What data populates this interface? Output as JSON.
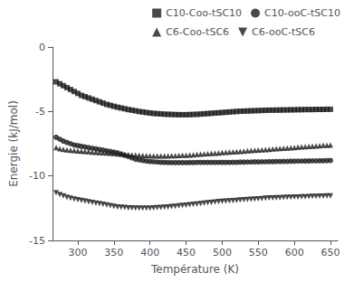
{
  "chart_data": {
    "type": "scatter",
    "xlabel": "Température (K)",
    "ylabel": "Energie (kJ/mol)",
    "xlim": [
      265,
      660
    ],
    "ylim": [
      -15,
      0
    ],
    "xticks": [
      300,
      350,
      400,
      450,
      500,
      550,
      600,
      650
    ],
    "yticks": [
      0,
      -5,
      -10,
      -15
    ],
    "grid": false,
    "legend": "upper right",
    "series": [
      {
        "name": "C10-Coo-tSC10",
        "marker": "square",
        "color": "#1a1a1a",
        "x": [
          270,
          275,
          280,
          285,
          290,
          295,
          300,
          305,
          310,
          315,
          320,
          325,
          330,
          335,
          340,
          345,
          350,
          355,
          360,
          365,
          370,
          375,
          380,
          385,
          390,
          395,
          400,
          405,
          410,
          415,
          420,
          425,
          430,
          435,
          440,
          445,
          450,
          455,
          460,
          465,
          470,
          475,
          480,
          485,
          490,
          495,
          500,
          505,
          510,
          515,
          520,
          525,
          530,
          535,
          540,
          545,
          550,
          555,
          560,
          565,
          570,
          575,
          580,
          585,
          590,
          595,
          600,
          605,
          610,
          615,
          620,
          625,
          630,
          635,
          640,
          645,
          650
        ],
        "values": [
          -2.7,
          -2.85,
          -3.0,
          -3.15,
          -3.3,
          -3.45,
          -3.6,
          -3.75,
          -3.85,
          -3.95,
          -4.05,
          -4.15,
          -4.25,
          -4.35,
          -4.45,
          -4.52,
          -4.6,
          -4.67,
          -4.73,
          -4.79,
          -4.85,
          -4.9,
          -4.95,
          -5.0,
          -5.04,
          -5.08,
          -5.12,
          -5.15,
          -5.17,
          -5.19,
          -5.21,
          -5.22,
          -5.23,
          -5.24,
          -5.25,
          -5.25,
          -5.25,
          -5.24,
          -5.23,
          -5.22,
          -5.2,
          -5.18,
          -5.16,
          -5.14,
          -5.12,
          -5.1,
          -5.08,
          -5.06,
          -5.04,
          -5.02,
          -5.0,
          -4.98,
          -4.97,
          -4.96,
          -4.95,
          -4.94,
          -4.93,
          -4.92,
          -4.91,
          -4.9,
          -4.9,
          -4.89,
          -4.89,
          -4.88,
          -4.88,
          -4.87,
          -4.87,
          -4.86,
          -4.86,
          -4.85,
          -4.85,
          -4.85,
          -4.84,
          -4.84,
          -4.84,
          -4.83,
          -4.83
        ]
      },
      {
        "name": "C10-ooC-tSC10",
        "marker": "circle",
        "color": "#1a1a1a",
        "x": [
          270,
          275,
          280,
          285,
          290,
          295,
          300,
          305,
          310,
          315,
          320,
          325,
          330,
          335,
          340,
          345,
          350,
          355,
          360,
          365,
          370,
          375,
          380,
          385,
          390,
          395,
          400,
          405,
          410,
          415,
          420,
          425,
          430,
          435,
          440,
          445,
          450,
          455,
          460,
          465,
          470,
          475,
          480,
          485,
          490,
          495,
          500,
          505,
          510,
          515,
          520,
          525,
          530,
          535,
          540,
          545,
          550,
          555,
          560,
          565,
          570,
          575,
          580,
          585,
          590,
          595,
          600,
          605,
          610,
          615,
          620,
          625,
          630,
          635,
          640,
          645,
          650
        ],
        "values": [
          -7.0,
          -7.15,
          -7.3,
          -7.4,
          -7.5,
          -7.6,
          -7.65,
          -7.7,
          -7.75,
          -7.8,
          -7.85,
          -7.9,
          -7.95,
          -8.0,
          -8.05,
          -8.1,
          -8.15,
          -8.2,
          -8.3,
          -8.4,
          -8.5,
          -8.6,
          -8.7,
          -8.75,
          -8.8,
          -8.85,
          -8.88,
          -8.9,
          -8.92,
          -8.94,
          -8.95,
          -8.96,
          -8.97,
          -8.97,
          -8.97,
          -8.97,
          -8.97,
          -8.96,
          -8.96,
          -8.95,
          -8.95,
          -8.95,
          -8.95,
          -8.95,
          -8.95,
          -8.95,
          -8.95,
          -8.95,
          -8.95,
          -8.94,
          -8.94,
          -8.93,
          -8.93,
          -8.92,
          -8.92,
          -8.91,
          -8.91,
          -8.9,
          -8.9,
          -8.89,
          -8.89,
          -8.88,
          -8.88,
          -8.87,
          -8.87,
          -8.86,
          -8.86,
          -8.85,
          -8.85,
          -8.84,
          -8.84,
          -8.83,
          -8.83,
          -8.82,
          -8.82,
          -8.81,
          -8.8
        ]
      },
      {
        "name": "C6-Coo-tSC6",
        "marker": "triangle-up",
        "color": "#1a1a1a",
        "x": [
          270,
          275,
          280,
          285,
          290,
          295,
          300,
          305,
          310,
          315,
          320,
          325,
          330,
          335,
          340,
          345,
          350,
          355,
          360,
          365,
          370,
          375,
          380,
          385,
          390,
          395,
          400,
          405,
          410,
          415,
          420,
          425,
          430,
          435,
          440,
          445,
          450,
          455,
          460,
          465,
          470,
          475,
          480,
          485,
          490,
          495,
          500,
          505,
          510,
          515,
          520,
          525,
          530,
          535,
          540,
          545,
          550,
          555,
          560,
          565,
          570,
          575,
          580,
          585,
          590,
          595,
          600,
          605,
          610,
          615,
          620,
          625,
          630,
          635,
          640,
          645,
          650
        ],
        "values": [
          -7.8,
          -7.88,
          -7.93,
          -7.97,
          -8.0,
          -8.03,
          -8.06,
          -8.08,
          -8.1,
          -8.12,
          -8.14,
          -8.16,
          -8.18,
          -8.2,
          -8.22,
          -8.24,
          -8.26,
          -8.28,
          -8.3,
          -8.32,
          -8.34,
          -8.36,
          -8.38,
          -8.4,
          -8.41,
          -8.42,
          -8.43,
          -8.44,
          -8.44,
          -8.44,
          -8.44,
          -8.44,
          -8.43,
          -8.42,
          -8.41,
          -8.4,
          -8.39,
          -8.37,
          -8.35,
          -8.33,
          -8.31,
          -8.29,
          -8.27,
          -8.25,
          -8.23,
          -8.21,
          -8.19,
          -8.17,
          -8.15,
          -8.13,
          -8.11,
          -8.09,
          -8.07,
          -8.05,
          -8.03,
          -8.01,
          -7.99,
          -7.97,
          -7.95,
          -7.93,
          -7.91,
          -7.89,
          -7.87,
          -7.85,
          -7.83,
          -7.81,
          -7.79,
          -7.77,
          -7.75,
          -7.73,
          -7.71,
          -7.69,
          -7.67,
          -7.65,
          -7.63,
          -7.62,
          -7.6
        ]
      },
      {
        "name": "C6-ooC-tSC6",
        "marker": "triangle-down",
        "color": "#1a1a1a",
        "x": [
          270,
          275,
          280,
          285,
          290,
          295,
          300,
          305,
          310,
          315,
          320,
          325,
          330,
          335,
          340,
          345,
          350,
          355,
          360,
          365,
          370,
          375,
          380,
          385,
          390,
          395,
          400,
          405,
          410,
          415,
          420,
          425,
          430,
          435,
          440,
          445,
          450,
          455,
          460,
          465,
          470,
          475,
          480,
          485,
          490,
          495,
          500,
          505,
          510,
          515,
          520,
          525,
          530,
          535,
          540,
          545,
          550,
          555,
          560,
          565,
          570,
          575,
          580,
          585,
          590,
          595,
          600,
          605,
          610,
          615,
          620,
          625,
          630,
          635,
          640,
          645,
          650
        ],
        "values": [
          -11.3,
          -11.45,
          -11.55,
          -11.65,
          -11.73,
          -11.8,
          -11.85,
          -11.9,
          -11.95,
          -12.0,
          -12.05,
          -12.1,
          -12.15,
          -12.2,
          -12.25,
          -12.3,
          -12.35,
          -12.4,
          -12.43,
          -12.45,
          -12.47,
          -12.48,
          -12.49,
          -12.5,
          -12.5,
          -12.5,
          -12.49,
          -12.48,
          -12.46,
          -12.44,
          -12.42,
          -12.4,
          -12.37,
          -12.35,
          -12.32,
          -12.29,
          -12.26,
          -12.23,
          -12.2,
          -12.17,
          -12.14,
          -12.11,
          -12.08,
          -12.05,
          -12.02,
          -11.99,
          -11.97,
          -11.95,
          -11.93,
          -11.91,
          -11.89,
          -11.87,
          -11.85,
          -11.83,
          -11.81,
          -11.79,
          -11.77,
          -11.75,
          -11.73,
          -11.71,
          -11.7,
          -11.69,
          -11.68,
          -11.67,
          -11.66,
          -11.65,
          -11.64,
          -11.63,
          -11.62,
          -11.61,
          -11.6,
          -11.59,
          -11.58,
          -11.57,
          -11.56,
          -11.55,
          -11.54
        ]
      }
    ]
  }
}
